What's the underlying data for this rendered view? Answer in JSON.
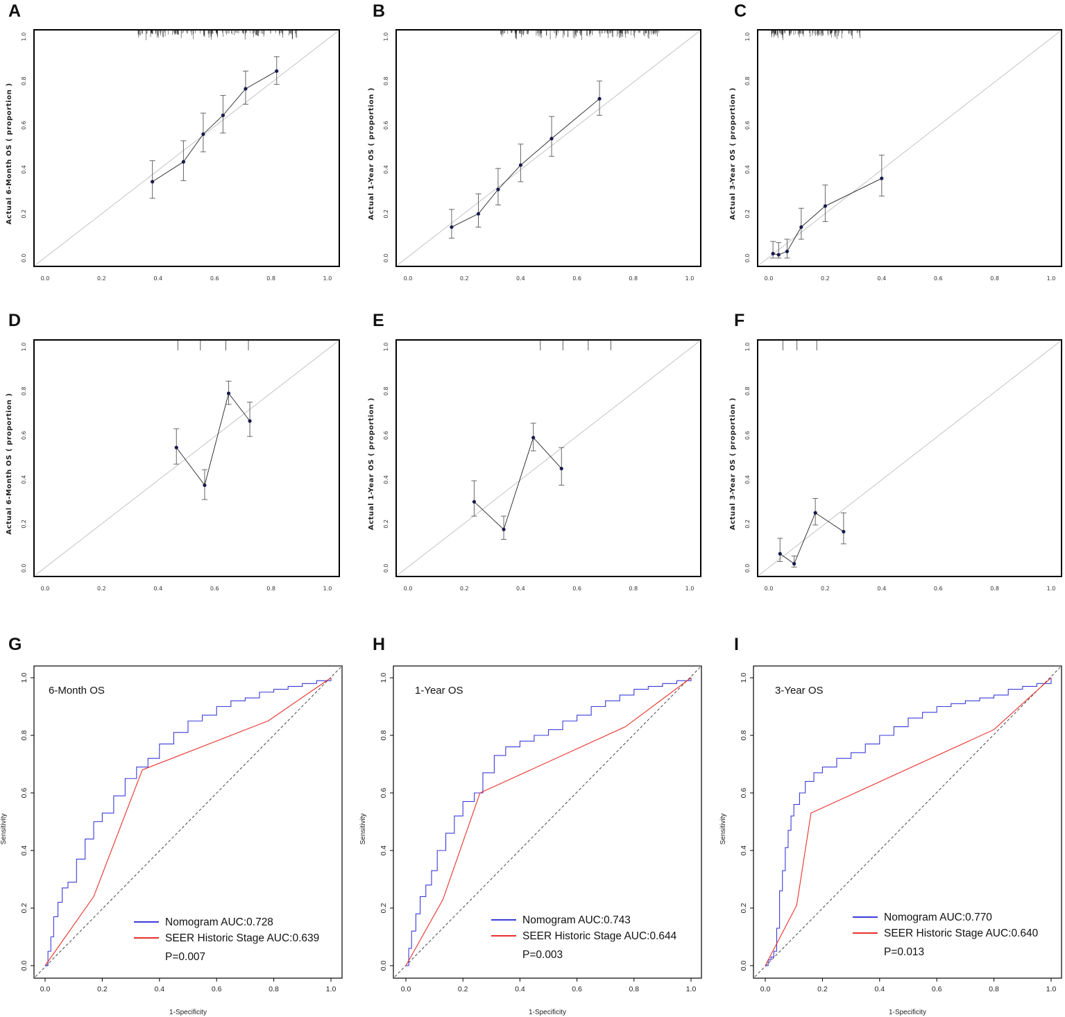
{
  "figure": {
    "panel_labels": [
      "A",
      "B",
      "C",
      "D",
      "E",
      "F",
      "G",
      "H",
      "I"
    ]
  },
  "colors": {
    "frame": "#000000",
    "diagonal": "#bdbdbd",
    "curve": "#222222",
    "point": "#1a1a4e",
    "errorbar": "#666666",
    "rug": "#333333",
    "nomogram": "#3a3adb",
    "seer": "#e8302a",
    "reference": "#444444"
  },
  "chart_data": [
    {
      "type": "scatter",
      "subtype": "calibration",
      "panel": "A",
      "xlabel": "",
      "ylabel": "Actual 6-Month OS ( proportion )",
      "xlim": [
        0,
        1
      ],
      "ylim": [
        0,
        1
      ],
      "ticks": [
        "0.0",
        "0.2",
        "0.4",
        "0.6",
        "0.8",
        "1.0"
      ],
      "points": [
        {
          "x": 0.38,
          "y": 0.345,
          "lo": 0.27,
          "hi": 0.44
        },
        {
          "x": 0.49,
          "y": 0.435,
          "lo": 0.35,
          "hi": 0.53
        },
        {
          "x": 0.56,
          "y": 0.56,
          "lo": 0.48,
          "hi": 0.655
        },
        {
          "x": 0.63,
          "y": 0.645,
          "lo": 0.565,
          "hi": 0.735
        },
        {
          "x": 0.71,
          "y": 0.765,
          "lo": 0.695,
          "hi": 0.845
        },
        {
          "x": 0.82,
          "y": 0.845,
          "lo": 0.785,
          "hi": 0.91
        }
      ],
      "rug": "dense-mid"
    },
    {
      "type": "scatter",
      "subtype": "calibration",
      "panel": "B",
      "xlabel": "",
      "ylabel": "Actual 1-Year OS ( proportion )",
      "xlim": [
        0,
        1
      ],
      "ylim": [
        0,
        1
      ],
      "ticks": [
        "0.0",
        "0.2",
        "0.4",
        "0.6",
        "0.8",
        "1.0"
      ],
      "points": [
        {
          "x": 0.155,
          "y": 0.14,
          "lo": 0.09,
          "hi": 0.22
        },
        {
          "x": 0.25,
          "y": 0.2,
          "lo": 0.14,
          "hi": 0.29
        },
        {
          "x": 0.32,
          "y": 0.31,
          "lo": 0.24,
          "hi": 0.405
        },
        {
          "x": 0.4,
          "y": 0.42,
          "lo": 0.345,
          "hi": 0.515
        },
        {
          "x": 0.51,
          "y": 0.54,
          "lo": 0.46,
          "hi": 0.64
        },
        {
          "x": 0.68,
          "y": 0.72,
          "lo": 0.645,
          "hi": 0.8
        }
      ],
      "rug": "dense-mid"
    },
    {
      "type": "scatter",
      "subtype": "calibration",
      "panel": "C",
      "xlabel": "",
      "ylabel": "Actual 3-Year OS ( proportion )",
      "xlim": [
        0,
        1
      ],
      "ylim": [
        0,
        1
      ],
      "ticks": [
        "0.0",
        "0.2",
        "0.4",
        "0.6",
        "0.8",
        "1.0"
      ],
      "points": [
        {
          "x": 0.015,
          "y": 0.02,
          "lo": 0.0,
          "hi": 0.075
        },
        {
          "x": 0.035,
          "y": 0.015,
          "lo": 0.0,
          "hi": 0.07
        },
        {
          "x": 0.065,
          "y": 0.03,
          "lo": 0.0,
          "hi": 0.085
        },
        {
          "x": 0.115,
          "y": 0.14,
          "lo": 0.085,
          "hi": 0.225
        },
        {
          "x": 0.2,
          "y": 0.235,
          "lo": 0.165,
          "hi": 0.33
        },
        {
          "x": 0.4,
          "y": 0.36,
          "lo": 0.28,
          "hi": 0.465
        }
      ],
      "rug": "dense-left"
    },
    {
      "type": "scatter",
      "subtype": "calibration",
      "panel": "D",
      "xlabel": "",
      "ylabel": "Actual 6-Month OS ( proportion )",
      "xlim": [
        0,
        1
      ],
      "ylim": [
        0,
        1
      ],
      "ticks": [
        "0.0",
        "0.2",
        "0.4",
        "0.6",
        "0.8",
        "1.0"
      ],
      "points": [
        {
          "x": 0.465,
          "y": 0.545,
          "lo": 0.47,
          "hi": 0.63
        },
        {
          "x": 0.565,
          "y": 0.375,
          "lo": 0.31,
          "hi": 0.445
        },
        {
          "x": 0.65,
          "y": 0.79,
          "lo": 0.74,
          "hi": 0.845
        },
        {
          "x": 0.725,
          "y": 0.665,
          "lo": 0.595,
          "hi": 0.75
        }
      ],
      "rug": "sparse-mid"
    },
    {
      "type": "scatter",
      "subtype": "calibration",
      "panel": "E",
      "xlabel": "",
      "ylabel": "Actual 1-Year OS ( proportion )",
      "xlim": [
        0,
        1
      ],
      "ylim": [
        0,
        1
      ],
      "ticks": [
        "0.0",
        "0.2",
        "0.4",
        "0.6",
        "0.8",
        "1.0"
      ],
      "points": [
        {
          "x": 0.235,
          "y": 0.3,
          "lo": 0.235,
          "hi": 0.395
        },
        {
          "x": 0.34,
          "y": 0.175,
          "lo": 0.13,
          "hi": 0.235
        },
        {
          "x": 0.445,
          "y": 0.59,
          "lo": 0.53,
          "hi": 0.655
        },
        {
          "x": 0.545,
          "y": 0.45,
          "lo": 0.375,
          "hi": 0.545
        }
      ],
      "rug": "sparse-mid"
    },
    {
      "type": "scatter",
      "subtype": "calibration",
      "panel": "F",
      "xlabel": "",
      "ylabel": "Actual 3-Year OS ( proportion )",
      "xlim": [
        0,
        1
      ],
      "ylim": [
        0,
        1
      ],
      "ticks": [
        "0.0",
        "0.2",
        "0.4",
        "0.6",
        "0.8",
        "1.0"
      ],
      "points": [
        {
          "x": 0.04,
          "y": 0.065,
          "lo": 0.03,
          "hi": 0.135
        },
        {
          "x": 0.09,
          "y": 0.02,
          "lo": 0.005,
          "hi": 0.055
        },
        {
          "x": 0.165,
          "y": 0.25,
          "lo": 0.195,
          "hi": 0.315
        },
        {
          "x": 0.265,
          "y": 0.165,
          "lo": 0.11,
          "hi": 0.25
        }
      ],
      "rug": "sparse-left"
    },
    {
      "type": "line",
      "subtype": "roc",
      "panel": "G",
      "title": "6-Month OS",
      "xlabel": "1-Specificity",
      "ylabel": "Sensitivity",
      "xlim": [
        0,
        1
      ],
      "ylim": [
        0,
        1
      ],
      "ticks": [
        "0.0",
        "0.2",
        "0.4",
        "0.6",
        "0.8",
        "1.0"
      ],
      "series": [
        {
          "name": "Nomogram",
          "label": "Nomogram AUC:0.728",
          "x": [
            0,
            0.01,
            0.02,
            0.03,
            0.045,
            0.06,
            0.08,
            0.11,
            0.14,
            0.17,
            0.2,
            0.24,
            0.28,
            0.32,
            0.36,
            0.4,
            0.45,
            0.5,
            0.55,
            0.6,
            0.65,
            0.7,
            0.75,
            0.8,
            0.85,
            0.9,
            0.95,
            1.0
          ],
          "y": [
            0,
            0.05,
            0.1,
            0.17,
            0.22,
            0.27,
            0.29,
            0.37,
            0.44,
            0.5,
            0.53,
            0.59,
            0.65,
            0.69,
            0.72,
            0.77,
            0.81,
            0.85,
            0.87,
            0.9,
            0.92,
            0.93,
            0.95,
            0.96,
            0.97,
            0.98,
            0.99,
            1.0
          ]
        },
        {
          "name": "SEER Historic Stage",
          "label": "SEER Historic Stage AUC:0.639",
          "x": [
            0,
            0.17,
            0.34,
            0.78,
            1.0
          ],
          "y": [
            0,
            0.24,
            0.68,
            0.85,
            1.0
          ]
        }
      ],
      "p_value": "P=0.007"
    },
    {
      "type": "line",
      "subtype": "roc",
      "panel": "H",
      "title": "1-Year OS",
      "xlabel": "1-Specificity",
      "ylabel": "Sensitivity",
      "xlim": [
        0,
        1
      ],
      "ylim": [
        0,
        1
      ],
      "ticks": [
        "0.0",
        "0.2",
        "0.4",
        "0.6",
        "0.8",
        "1.0"
      ],
      "series": [
        {
          "name": "Nomogram",
          "label": "Nomogram AUC:0.743",
          "x": [
            0,
            0.01,
            0.02,
            0.035,
            0.05,
            0.07,
            0.09,
            0.11,
            0.14,
            0.17,
            0.2,
            0.24,
            0.27,
            0.31,
            0.35,
            0.4,
            0.45,
            0.5,
            0.55,
            0.6,
            0.65,
            0.7,
            0.75,
            0.8,
            0.85,
            0.9,
            0.95,
            1.0
          ],
          "y": [
            0,
            0.06,
            0.12,
            0.18,
            0.24,
            0.28,
            0.33,
            0.4,
            0.46,
            0.52,
            0.57,
            0.6,
            0.67,
            0.73,
            0.76,
            0.78,
            0.8,
            0.82,
            0.85,
            0.87,
            0.9,
            0.92,
            0.94,
            0.96,
            0.97,
            0.98,
            0.99,
            1.0
          ]
        },
        {
          "name": "SEER Historic Stage",
          "label": "SEER Historic Stage AUC:0.644",
          "x": [
            0,
            0.13,
            0.26,
            0.77,
            1.0
          ],
          "y": [
            0,
            0.23,
            0.6,
            0.83,
            1.0
          ]
        }
      ],
      "p_value": "P=0.003"
    },
    {
      "type": "line",
      "subtype": "roc",
      "panel": "I",
      "title": "3-Year OS",
      "xlabel": "1-Specificity",
      "ylabel": "Sensitivity",
      "xlim": [
        0,
        1
      ],
      "ylim": [
        0,
        1
      ],
      "ticks": [
        "0.0",
        "0.2",
        "0.4",
        "0.6",
        "0.8",
        "1.0"
      ],
      "series": [
        {
          "name": "Nomogram",
          "label": "Nomogram AUC:0.770",
          "x": [
            0,
            0.01,
            0.02,
            0.03,
            0.04,
            0.05,
            0.06,
            0.07,
            0.08,
            0.09,
            0.1,
            0.12,
            0.14,
            0.17,
            0.2,
            0.25,
            0.3,
            0.35,
            0.4,
            0.45,
            0.5,
            0.55,
            0.6,
            0.65,
            0.7,
            0.75,
            0.8,
            0.85,
            0.9,
            0.95,
            1.0
          ],
          "y": [
            0,
            0.02,
            0.03,
            0.05,
            0.13,
            0.26,
            0.33,
            0.41,
            0.47,
            0.52,
            0.56,
            0.6,
            0.64,
            0.67,
            0.69,
            0.72,
            0.74,
            0.77,
            0.8,
            0.83,
            0.86,
            0.88,
            0.9,
            0.91,
            0.92,
            0.93,
            0.94,
            0.96,
            0.97,
            0.98,
            1.0
          ]
        },
        {
          "name": "SEER Historic Stage",
          "label": "SEER Historic Stage AUC:0.640",
          "x": [
            0,
            0.11,
            0.16,
            0.8,
            1.0
          ],
          "y": [
            0,
            0.21,
            0.53,
            0.82,
            1.0
          ]
        }
      ],
      "p_value": "P=0.013"
    }
  ]
}
